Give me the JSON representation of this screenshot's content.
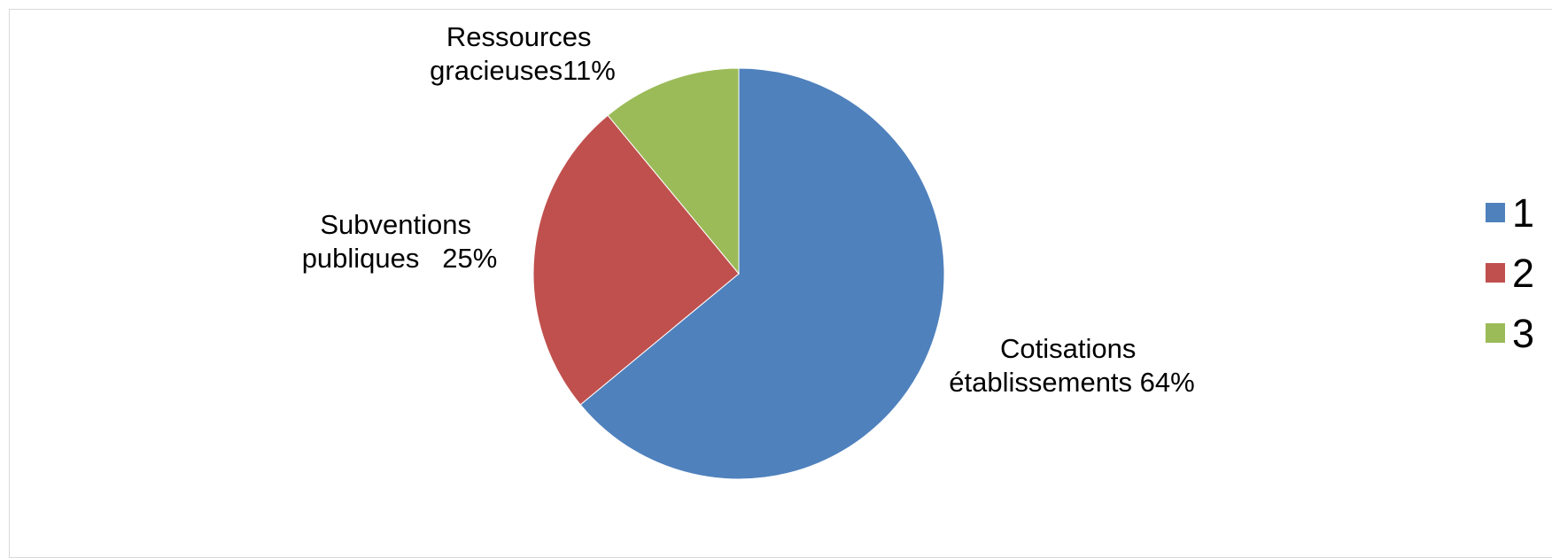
{
  "chart_data": {
    "type": "pie",
    "title": "",
    "colors": {
      "1": "#4f81bd",
      "2": "#c0504d",
      "3": "#9bbb59"
    },
    "slices": [
      {
        "legend": "1",
        "label_lines": [
          "Cotisations",
          "établissements 64%"
        ],
        "value": 64,
        "color": "#4f81bd"
      },
      {
        "legend": "2",
        "label_lines": [
          "Subventions",
          "publiques   25%"
        ],
        "value": 25,
        "color": "#c0504d"
      },
      {
        "legend": "3",
        "label_lines": [
          "Ressources",
          "gracieuses11%"
        ],
        "value": 11,
        "color": "#9bbb59"
      }
    ],
    "legend": {
      "placement": "right",
      "entries": [
        "1",
        "2",
        "3"
      ]
    },
    "start_direction": "top",
    "direction": "clockwise"
  }
}
